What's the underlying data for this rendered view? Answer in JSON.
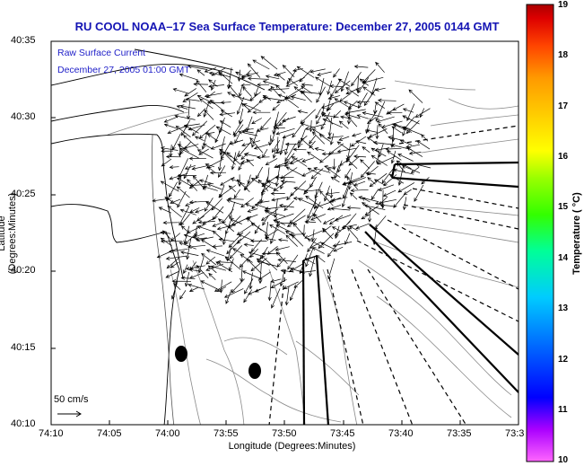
{
  "title": "RU COOL  NOAA–17  Sea Surface Temperature:  December 27, 2005 0144 GMT",
  "overlay": {
    "line1": "Raw Surface Current",
    "line2": "December 27, 2005 01:00 GMT"
  },
  "axes": {
    "ylabel": "Latitude (Degrees:Minutes)",
    "xlabel": "Longitude (Degrees:Minutes)",
    "yticks": [
      "40:35",
      "40:30",
      "40:25",
      "40:20",
      "40:15",
      "40:10"
    ],
    "xticks": [
      "74:10",
      "74:05",
      "74:00",
      "73:55",
      "73:50",
      "73:45",
      "73:40",
      "73:35",
      "73:3"
    ]
  },
  "scale": {
    "label": "50 cm/s"
  },
  "colorbar": {
    "label": "Temperature ( °C)",
    "ticks": [
      "19",
      "18",
      "17",
      "16",
      "15",
      "14",
      "13",
      "12",
      "11",
      "10"
    ],
    "min": 10,
    "max": 19,
    "colors": [
      "#ff66ff",
      "#aa00ff",
      "#0000ff",
      "#0066ff",
      "#00ccff",
      "#00ff99",
      "#33ff00",
      "#99ff00",
      "#ffff00",
      "#ffcc00",
      "#ff9900",
      "#ff5500",
      "#ff0000",
      "#aa0000"
    ]
  }
}
